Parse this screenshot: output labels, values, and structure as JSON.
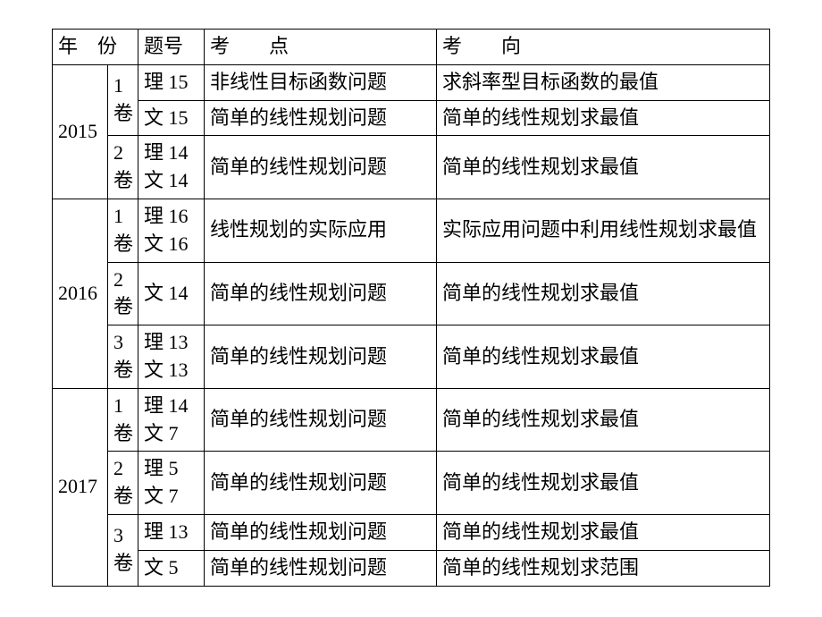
{
  "headers": {
    "year": "年　份",
    "num": "题号",
    "topic": "考　　点",
    "direction": "考　　向"
  },
  "years": {
    "y2015": "2015",
    "y2016": "2016",
    "y2017": "2017"
  },
  "vols": {
    "v1": "1 卷",
    "v2": "2 卷",
    "v3": "3 卷"
  },
  "rows": {
    "r1": {
      "num": "理 15",
      "topic": "非线性目标函数问题",
      "dir": "求斜率型目标函数的最值"
    },
    "r2": {
      "num": "文 15",
      "topic": "简单的线性规划问题",
      "dir": "简单的线性规划求最值"
    },
    "r3": {
      "num1": "理 14",
      "num2": "文 14",
      "topic": "简单的线性规划问题",
      "dir": "简单的线性规划求最值"
    },
    "r4": {
      "num1": "理 16",
      "num2": "文 16",
      "topic": "线性规划的实际应用",
      "dir": "实际应用问题中利用线性规划求最值"
    },
    "r5": {
      "num": "文 14",
      "topic": "简单的线性规划问题",
      "dir": "简单的线性规划求最值"
    },
    "r6": {
      "num1": "理 13",
      "num2": "文 13",
      "topic": "简单的线性规划问题",
      "dir": "简单的线性规划求最值"
    },
    "r7": {
      "num1": "理 14",
      "num2": "文 7",
      "topic": "简单的线性规划问题",
      "dir": "简单的线性规划求最值"
    },
    "r8": {
      "num1": "理 5",
      "num2": "文 7",
      "topic": "简单的线性规划问题",
      "dir": "简单的线性规划求最值"
    },
    "r9": {
      "num": "理 13",
      "topic": "简单的线性规划问题",
      "dir": "简单的线性规划求最值"
    },
    "r10": {
      "num": "文 5",
      "topic": "简单的线性规划问题",
      "dir": "简单的线性规划求范围"
    }
  }
}
